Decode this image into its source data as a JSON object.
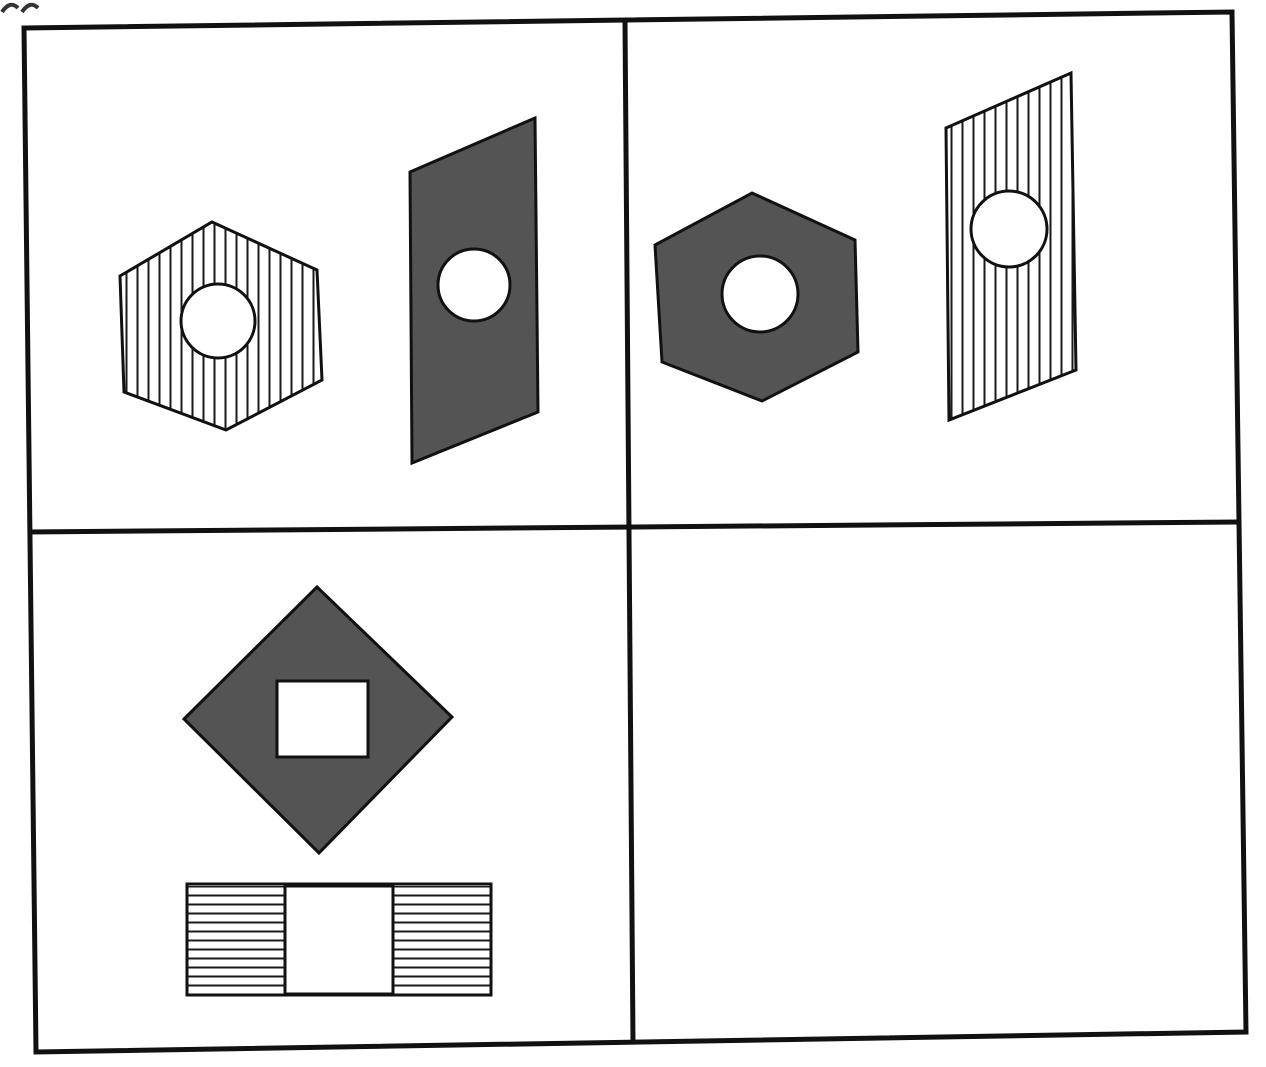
{
  "colors": {
    "background": "#ffffff",
    "line": "#111111",
    "dark_fill": "#545454",
    "hatch": "#1a1a1a"
  },
  "puzzle": {
    "grid": "2x2",
    "cells": [
      {
        "id": "top-left",
        "figures": [
          {
            "shape": "hexagon",
            "fill": "vertical-hatch",
            "hole": "circle",
            "hole_fill": "white"
          },
          {
            "shape": "parallelogram",
            "fill": "dark",
            "hole": "circle",
            "hole_fill": "white"
          }
        ]
      },
      {
        "id": "top-right",
        "figures": [
          {
            "shape": "hexagon",
            "fill": "dark",
            "hole": "circle",
            "hole_fill": "white"
          },
          {
            "shape": "parallelogram",
            "fill": "vertical-hatch",
            "hole": "circle",
            "hole_fill": "white"
          }
        ]
      },
      {
        "id": "bottom-left",
        "figures": [
          {
            "shape": "diamond",
            "fill": "dark",
            "hole": "square",
            "hole_fill": "white"
          },
          {
            "shape": "rectangle",
            "fill": "horizontal-hatch-sides",
            "hole": "square",
            "hole_fill": "white"
          }
        ]
      },
      {
        "id": "bottom-right",
        "figures": [],
        "state": "empty"
      }
    ]
  }
}
